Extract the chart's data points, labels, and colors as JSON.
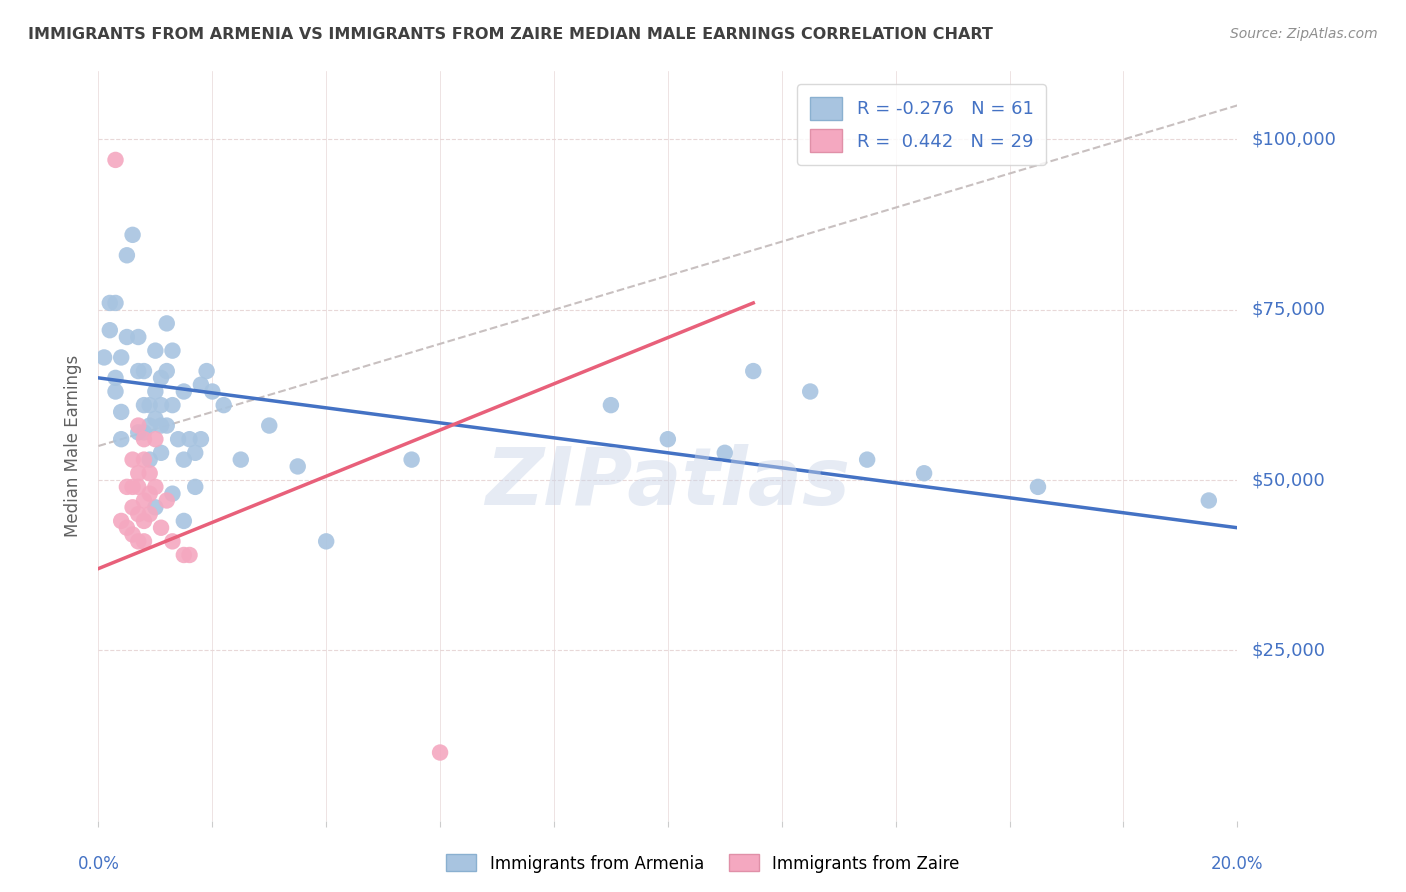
{
  "title": "IMMIGRANTS FROM ARMENIA VS IMMIGRANTS FROM ZAIRE MEDIAN MALE EARNINGS CORRELATION CHART",
  "source": "Source: ZipAtlas.com",
  "ylabel": "Median Male Earnings",
  "xlim": [
    0.0,
    0.2
  ],
  "ylim": [
    0,
    110000
  ],
  "yticks": [
    25000,
    50000,
    75000,
    100000
  ],
  "ytick_labels": [
    "$25,000",
    "$50,000",
    "$75,000",
    "$100,000"
  ],
  "armenia_color": "#a8c4e0",
  "zaire_color": "#f4a8c0",
  "armenia_line_color": "#4472c4",
  "zaire_line_color": "#e8607a",
  "diag_line_color": "#c8c0c0",
  "legend_R_armenia": "-0.276",
  "legend_N_armenia": "61",
  "legend_R_zaire": "0.442",
  "legend_N_zaire": "29",
  "title_color": "#404040",
  "source_color": "#909090",
  "axis_label_color": "#4472c4",
  "watermark": "ZIPatlas",
  "armenia_points": [
    [
      0.001,
      68000
    ],
    [
      0.002,
      72000
    ],
    [
      0.002,
      76000
    ],
    [
      0.003,
      76000
    ],
    [
      0.003,
      65000
    ],
    [
      0.003,
      63000
    ],
    [
      0.004,
      68000
    ],
    [
      0.004,
      60000
    ],
    [
      0.004,
      56000
    ],
    [
      0.005,
      83000
    ],
    [
      0.005,
      71000
    ],
    [
      0.006,
      86000
    ],
    [
      0.007,
      71000
    ],
    [
      0.007,
      66000
    ],
    [
      0.007,
      57000
    ],
    [
      0.008,
      66000
    ],
    [
      0.008,
      61000
    ],
    [
      0.008,
      57000
    ],
    [
      0.009,
      61000
    ],
    [
      0.009,
      58000
    ],
    [
      0.009,
      53000
    ],
    [
      0.01,
      69000
    ],
    [
      0.01,
      63000
    ],
    [
      0.01,
      59000
    ],
    [
      0.01,
      46000
    ],
    [
      0.011,
      65000
    ],
    [
      0.011,
      61000
    ],
    [
      0.011,
      58000
    ],
    [
      0.011,
      54000
    ],
    [
      0.012,
      73000
    ],
    [
      0.012,
      66000
    ],
    [
      0.012,
      58000
    ],
    [
      0.013,
      69000
    ],
    [
      0.013,
      61000
    ],
    [
      0.013,
      48000
    ],
    [
      0.014,
      56000
    ],
    [
      0.015,
      63000
    ],
    [
      0.015,
      53000
    ],
    [
      0.015,
      44000
    ],
    [
      0.016,
      56000
    ],
    [
      0.017,
      54000
    ],
    [
      0.017,
      49000
    ],
    [
      0.018,
      64000
    ],
    [
      0.018,
      56000
    ],
    [
      0.019,
      66000
    ],
    [
      0.02,
      63000
    ],
    [
      0.022,
      61000
    ],
    [
      0.025,
      53000
    ],
    [
      0.03,
      58000
    ],
    [
      0.035,
      52000
    ],
    [
      0.04,
      41000
    ],
    [
      0.055,
      53000
    ],
    [
      0.09,
      61000
    ],
    [
      0.1,
      56000
    ],
    [
      0.11,
      54000
    ],
    [
      0.115,
      66000
    ],
    [
      0.125,
      63000
    ],
    [
      0.135,
      53000
    ],
    [
      0.145,
      51000
    ],
    [
      0.165,
      49000
    ],
    [
      0.195,
      47000
    ]
  ],
  "zaire_points": [
    [
      0.003,
      97000
    ],
    [
      0.004,
      44000
    ],
    [
      0.005,
      49000
    ],
    [
      0.005,
      43000
    ],
    [
      0.006,
      53000
    ],
    [
      0.006,
      49000
    ],
    [
      0.006,
      46000
    ],
    [
      0.006,
      42000
    ],
    [
      0.007,
      58000
    ],
    [
      0.007,
      51000
    ],
    [
      0.007,
      49000
    ],
    [
      0.007,
      45000
    ],
    [
      0.007,
      41000
    ],
    [
      0.008,
      56000
    ],
    [
      0.008,
      53000
    ],
    [
      0.008,
      47000
    ],
    [
      0.008,
      44000
    ],
    [
      0.008,
      41000
    ],
    [
      0.009,
      51000
    ],
    [
      0.009,
      48000
    ],
    [
      0.009,
      45000
    ],
    [
      0.01,
      56000
    ],
    [
      0.01,
      49000
    ],
    [
      0.011,
      43000
    ],
    [
      0.012,
      47000
    ],
    [
      0.013,
      41000
    ],
    [
      0.015,
      39000
    ],
    [
      0.016,
      39000
    ],
    [
      0.06,
      10000
    ]
  ],
  "armenia_line_x": [
    0.0,
    0.2
  ],
  "armenia_line_y": [
    65000,
    43000
  ],
  "zaire_line_x": [
    0.0,
    0.115
  ],
  "zaire_line_y": [
    37000,
    76000
  ]
}
